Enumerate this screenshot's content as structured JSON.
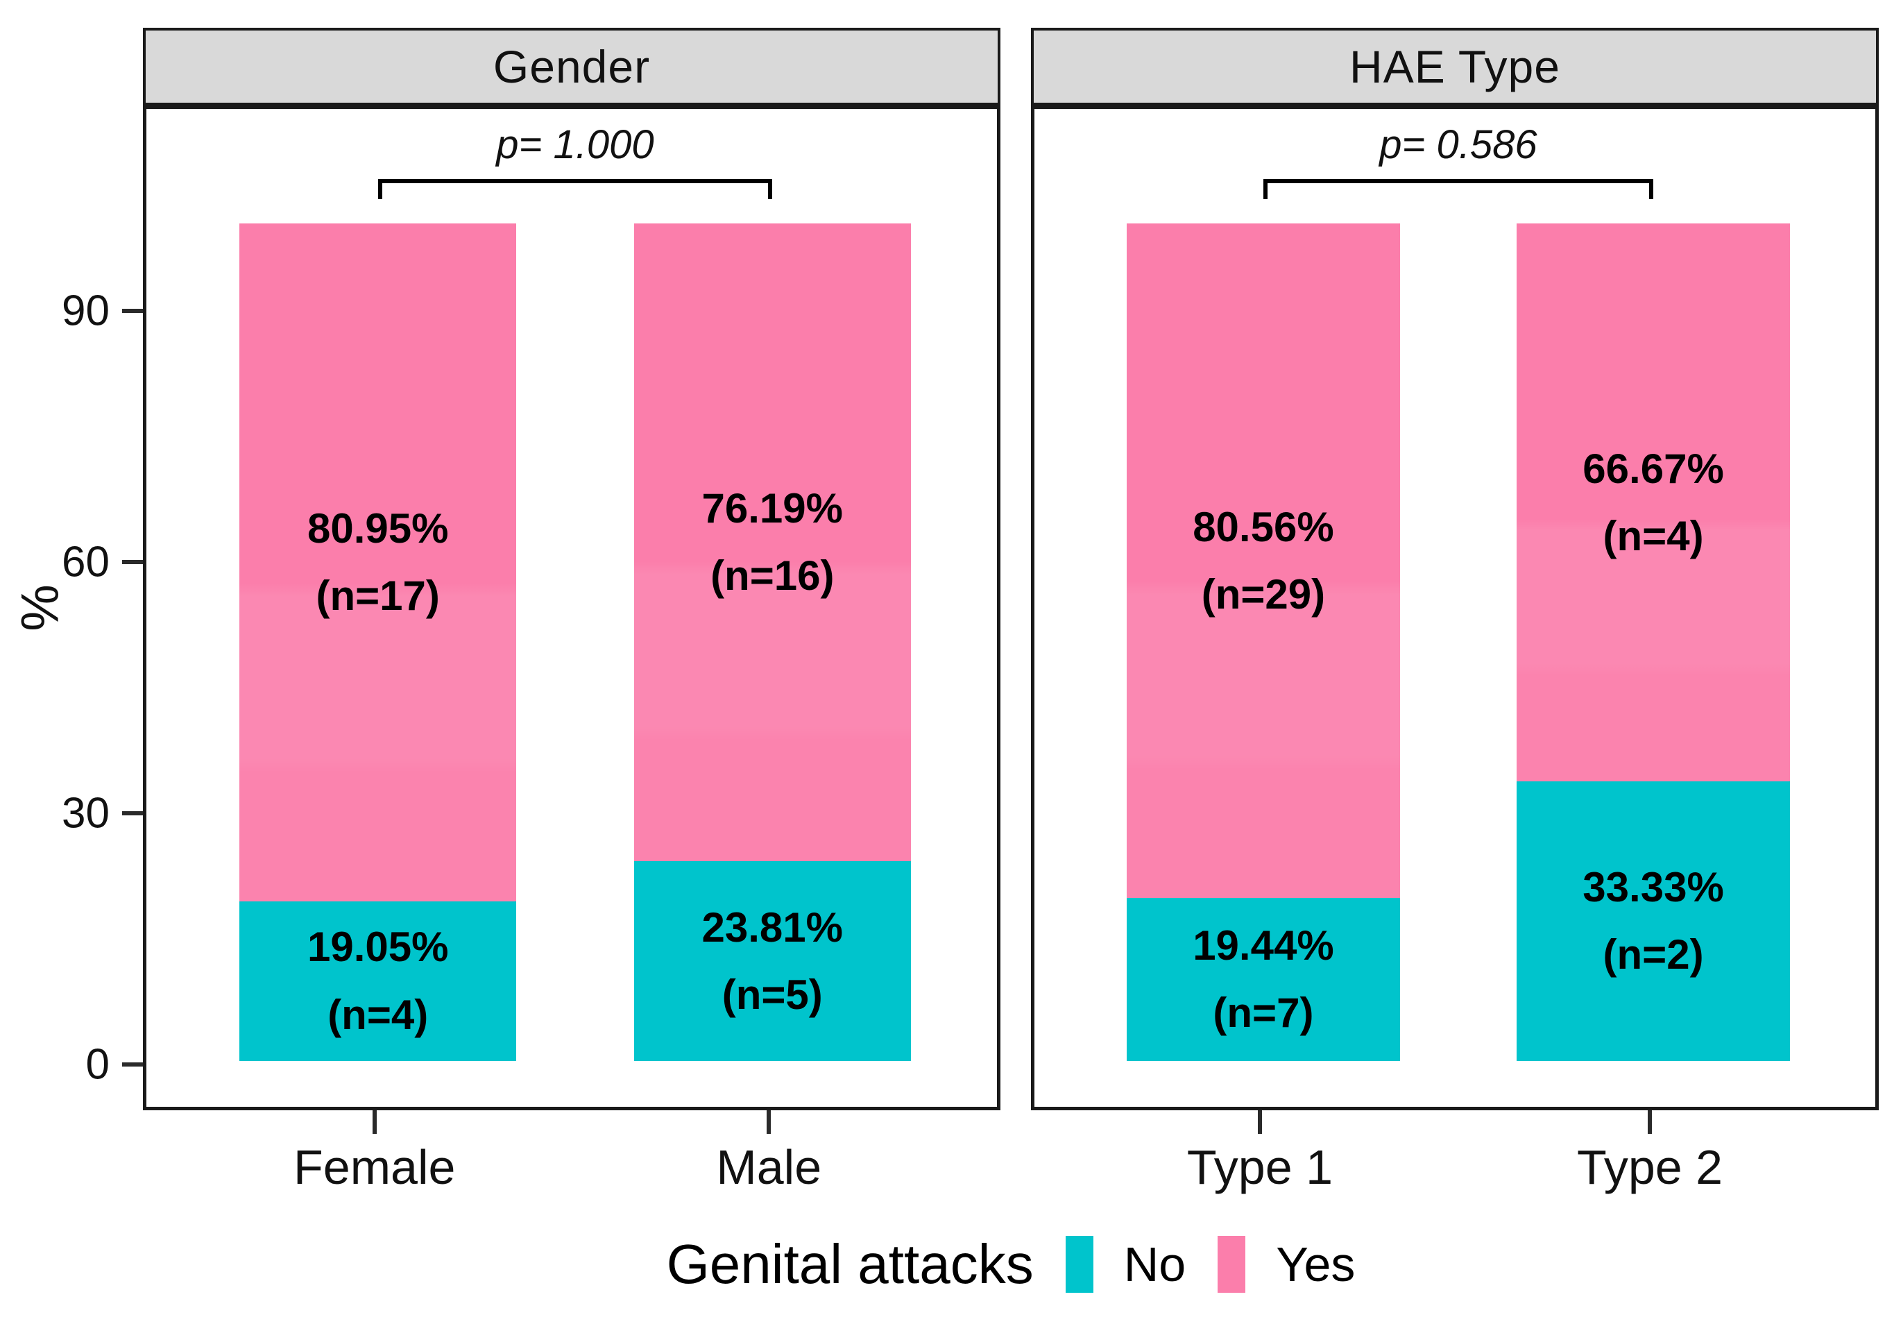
{
  "chart_data": {
    "type": "bar",
    "stacked": true,
    "values_are": "percent",
    "ylabel": "%",
    "ylim": [
      0,
      100
    ],
    "yticks": [
      0,
      30,
      60,
      90
    ],
    "grid": "off",
    "legend_position": "bottom",
    "legend_title": "Genital attacks",
    "legend_items": [
      {
        "label": "No",
        "color": "#00C4CC"
      },
      {
        "label": "Yes",
        "color": "#FB7EAB"
      }
    ],
    "panels": [
      {
        "title": "Gender",
        "p_label": "p= 1.000",
        "categories": [
          "Female",
          "Male"
        ],
        "series": [
          {
            "name": "No",
            "values": [
              19.05,
              23.81
            ],
            "labels": [
              [
                "19.05%",
                "(n=4)"
              ],
              [
                "23.81%",
                "(n=5)"
              ]
            ]
          },
          {
            "name": "Yes",
            "values": [
              80.95,
              76.19
            ],
            "labels": [
              [
                "80.95%",
                "(n=17)"
              ],
              [
                "76.19%",
                "(n=16)"
              ]
            ]
          }
        ]
      },
      {
        "title": "HAE Type",
        "p_label": "p= 0.586",
        "categories": [
          "Type 1",
          "Type 2"
        ],
        "series": [
          {
            "name": "No",
            "values": [
              19.44,
              33.33
            ],
            "labels": [
              [
                "19.44%",
                "(n=7)"
              ],
              [
                "33.33%",
                "(n=2)"
              ]
            ]
          },
          {
            "name": "Yes",
            "values": [
              80.56,
              66.67
            ],
            "labels": [
              [
                "80.56%",
                "(n=29)"
              ],
              [
                "66.67%",
                "(n=4)"
              ]
            ]
          }
        ]
      }
    ]
  }
}
